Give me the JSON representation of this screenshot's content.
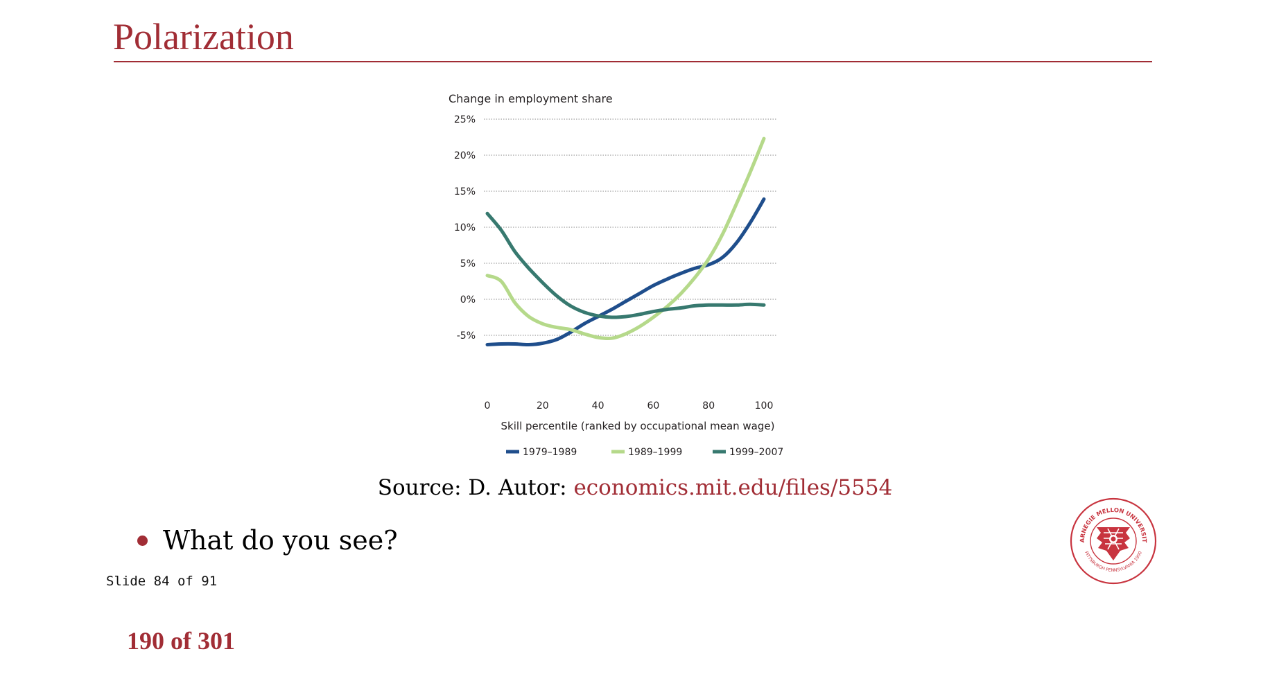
{
  "slide": {
    "title": "Polarization",
    "source_prefix": "Source: D. Autor:",
    "source_link": "economics.mit.edu/files/5554",
    "bullet": "What do you see?",
    "slide_counter": "Slide 84 of 91",
    "page_counter": "190 of 301",
    "accent_color": "#a12d35",
    "seal_text_top": "CARNEGIE MELLON UNIVERSITY",
    "seal_text_bottom": "PITTSBURGH PENNSYLVANIA 1900"
  },
  "chart_data": {
    "type": "line",
    "title": "Change in employment share",
    "xlabel": "Skill percentile (ranked by occupational mean wage)",
    "ylabel": "",
    "xlim": [
      0,
      100
    ],
    "ylim": [
      -7,
      25
    ],
    "x_ticks": [
      "0",
      "20",
      "40",
      "60",
      "80",
      "100"
    ],
    "x_tick_values": [
      0,
      20,
      40,
      60,
      80,
      100
    ],
    "y_ticks": [
      "25%",
      "20%",
      "15%",
      "10%",
      "5%",
      "0%",
      "-5%"
    ],
    "y_tick_values": [
      25,
      20,
      15,
      10,
      5,
      0,
      -5
    ],
    "grid": "horizontal dotted",
    "legend": "bottom",
    "x": [
      0,
      5,
      10,
      15,
      20,
      25,
      30,
      35,
      40,
      45,
      50,
      55,
      60,
      65,
      70,
      75,
      80,
      85,
      90,
      95,
      100
    ],
    "series": [
      {
        "name": "1979–1989",
        "color": "#1f4e8c",
        "values": [
          -6.3,
          -6.2,
          -6.2,
          -6.3,
          -6.1,
          -5.6,
          -4.6,
          -3.4,
          -2.4,
          -1.4,
          -0.3,
          0.8,
          1.9,
          2.8,
          3.6,
          4.3,
          4.8,
          5.8,
          7.8,
          10.6,
          13.9
        ]
      },
      {
        "name": "1989–1999",
        "color": "#b5d98a",
        "values": [
          3.3,
          2.5,
          -0.5,
          -2.4,
          -3.4,
          -3.9,
          -4.2,
          -4.8,
          -5.3,
          -5.4,
          -4.8,
          -3.8,
          -2.5,
          -1.0,
          0.8,
          3.0,
          5.6,
          9.0,
          13.2,
          17.6,
          22.3
        ]
      },
      {
        "name": "1999–2007",
        "color": "#37796f",
        "values": [
          11.9,
          9.6,
          6.6,
          4.3,
          2.3,
          0.5,
          -0.9,
          -1.8,
          -2.3,
          -2.5,
          -2.4,
          -2.1,
          -1.7,
          -1.4,
          -1.2,
          -0.9,
          -0.8,
          -0.8,
          -0.8,
          -0.7,
          -0.8
        ]
      }
    ]
  }
}
